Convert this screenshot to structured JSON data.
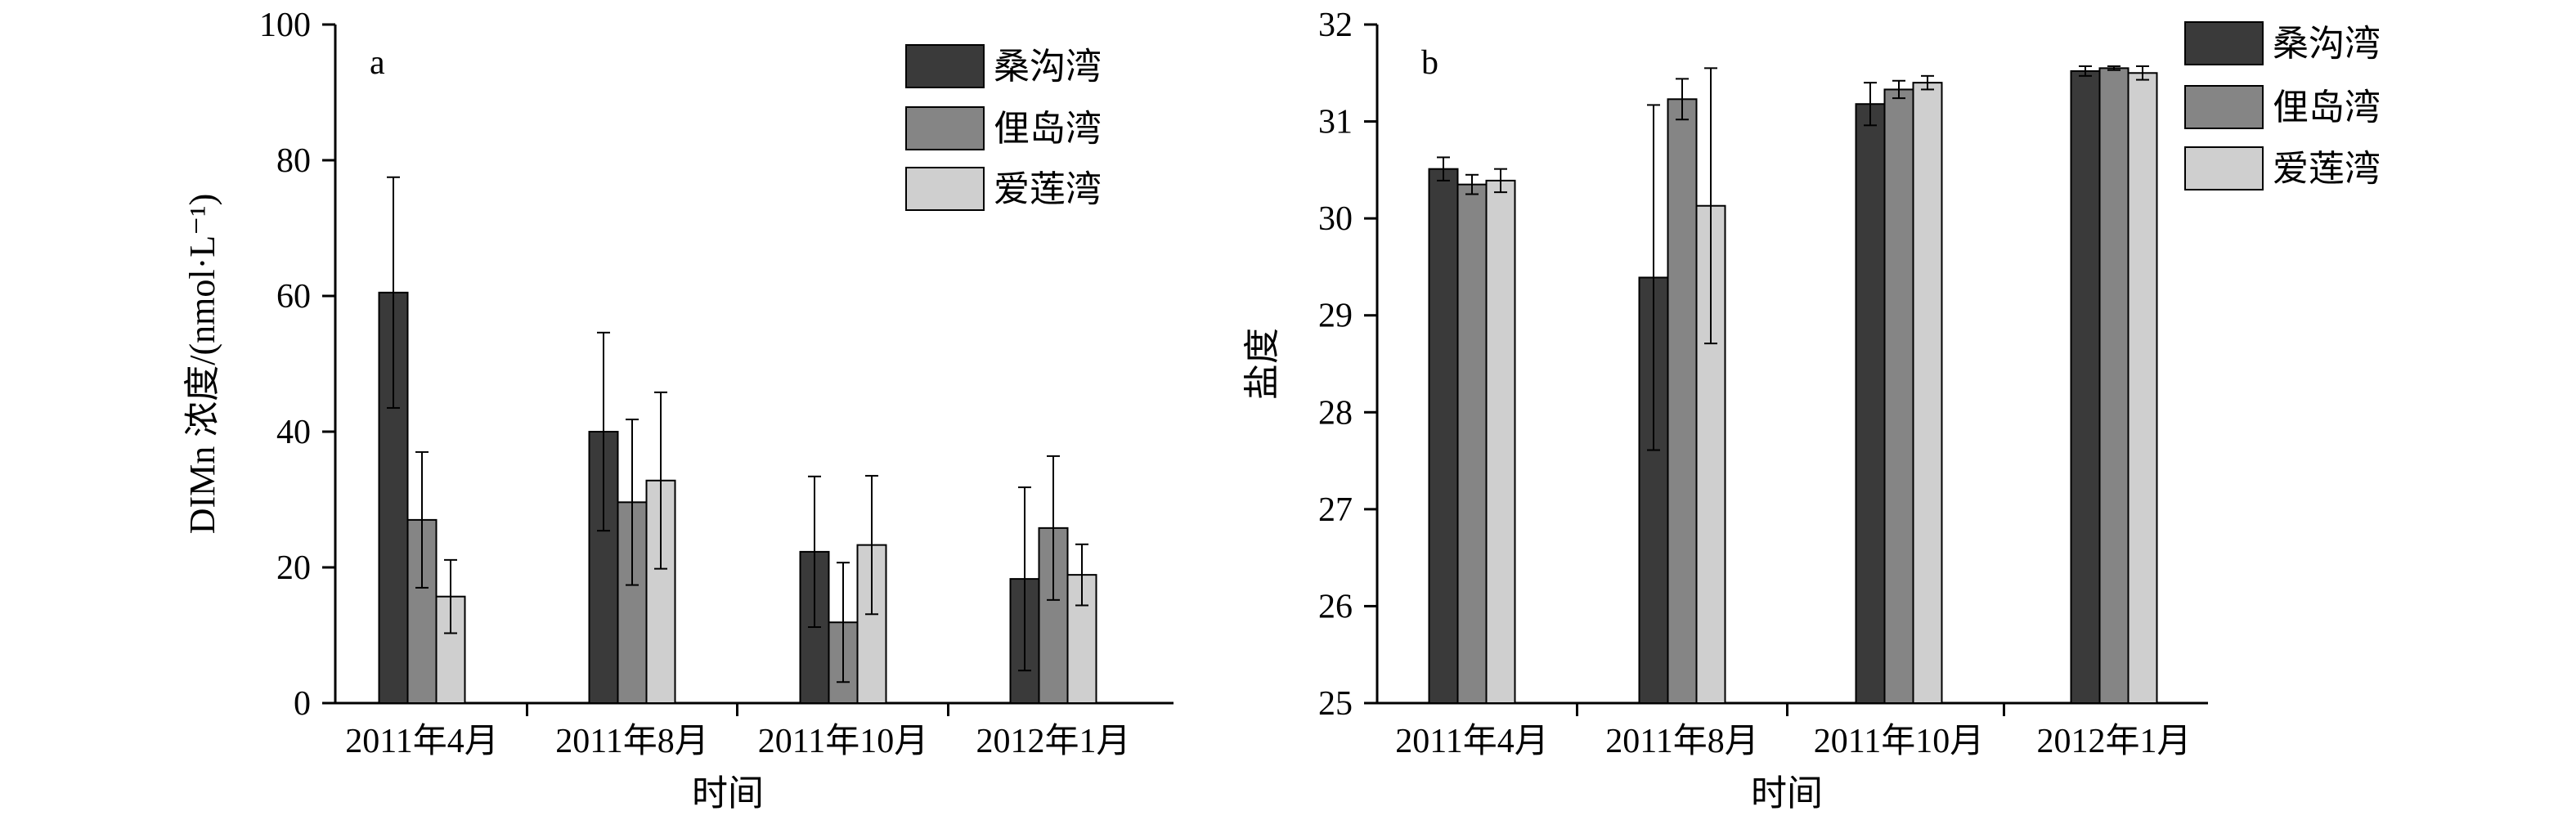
{
  "colors": {
    "series": [
      "#3a3a3a",
      "#858585",
      "#cfcfcf"
    ],
    "axis": "#000000",
    "background": "#ffffff"
  },
  "chart_data": [
    {
      "type": "bar",
      "panel": "a",
      "title": "",
      "xlabel": "时间",
      "ylabel": "DIMn 浓度/(nmol·L⁻¹)",
      "ylim": [
        0,
        100
      ],
      "yticks": [
        0,
        20,
        40,
        60,
        80,
        100
      ],
      "categories": [
        "2011年4月",
        "2011年8月",
        "2011年10月",
        "2012年1月"
      ],
      "legend_position": "top-right",
      "grid": false,
      "error_bars": true,
      "series": [
        {
          "name": "桑沟湾",
          "values": [
            60.5,
            40.0,
            22.3,
            18.3
          ],
          "errors": [
            17.0,
            14.6,
            11.1,
            13.5
          ]
        },
        {
          "name": "俚岛湾",
          "values": [
            27.0,
            29.6,
            11.9,
            25.8
          ],
          "errors": [
            10.0,
            12.2,
            8.8,
            10.6
          ]
        },
        {
          "name": "爱莲湾",
          "values": [
            15.7,
            32.8,
            23.3,
            18.9
          ],
          "errors": [
            5.4,
            13.0,
            10.2,
            4.5
          ]
        }
      ]
    },
    {
      "type": "bar",
      "panel": "b",
      "title": "",
      "xlabel": "时间",
      "ylabel": "盐度",
      "ylim": [
        25,
        32
      ],
      "yticks": [
        25,
        26,
        27,
        28,
        29,
        30,
        31,
        32
      ],
      "categories": [
        "2011年4月",
        "2011年8月",
        "2011年10月",
        "2012年1月"
      ],
      "legend_position": "top-right",
      "grid": false,
      "error_bars": true,
      "series": [
        {
          "name": "桑沟湾",
          "values": [
            30.51,
            29.39,
            31.18,
            31.52
          ],
          "errors": [
            0.12,
            1.78,
            0.22,
            0.05
          ]
        },
        {
          "name": "俚岛湾",
          "values": [
            30.35,
            31.23,
            31.33,
            31.55
          ],
          "errors": [
            0.1,
            0.21,
            0.09,
            0.02
          ]
        },
        {
          "name": "爱莲湾",
          "values": [
            30.39,
            30.13,
            31.4,
            31.5
          ],
          "errors": [
            0.12,
            1.42,
            0.07,
            0.07
          ]
        }
      ]
    }
  ]
}
